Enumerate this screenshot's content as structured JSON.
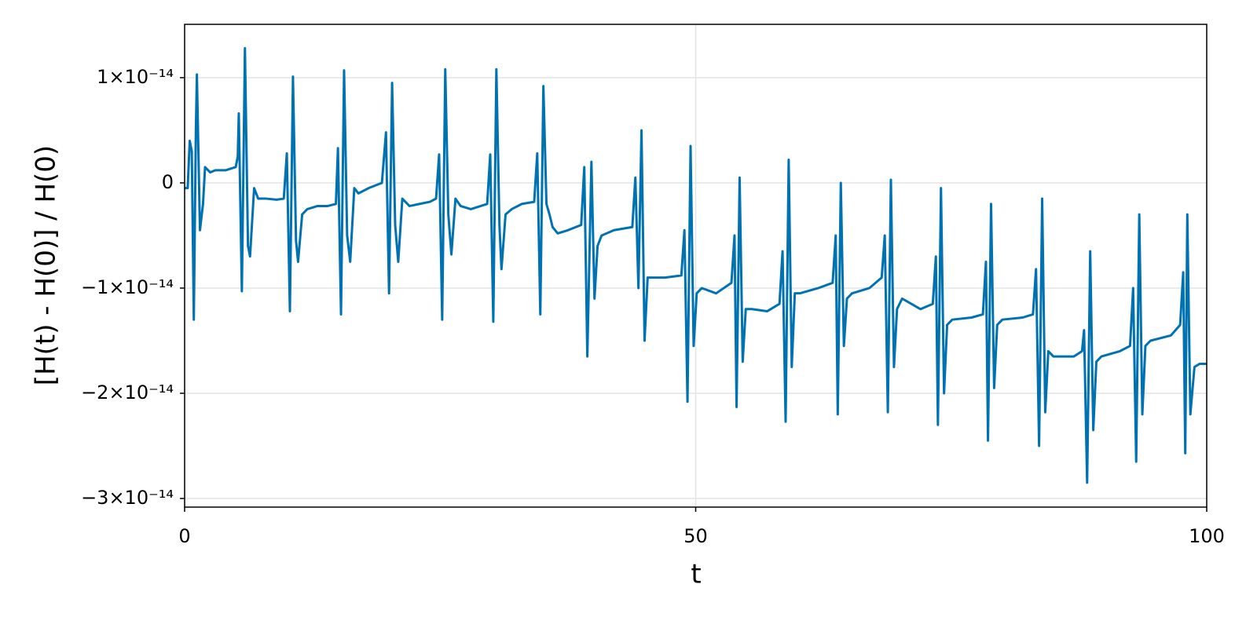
{
  "chart_data": {
    "type": "line",
    "x_label": "t",
    "y_label": "[H(t) - H(0)] / H(0)",
    "color": "#0072b2",
    "grid": true,
    "xlim": [
      0,
      100
    ],
    "xticks": [
      0,
      50,
      100
    ],
    "ylim": [
      -3.082e-14,
      1.507e-14
    ],
    "yticks": [
      {
        "value": -3e-14,
        "label": "−3×10⁻¹⁴"
      },
      {
        "value": -2e-14,
        "label": "−2×10⁻¹⁴"
      },
      {
        "value": -1e-14,
        "label": "−1×10⁻¹⁴"
      },
      0,
      {
        "value": 1e-14,
        "label": "1×10⁻¹⁴"
      }
    ],
    "x": [
      0,
      0.3,
      0.5,
      0.7,
      0.9,
      1.1,
      1.2,
      1.5,
      1.8,
      2.0,
      2.5,
      3,
      4,
      5,
      5.2,
      5.3,
      5.6,
      5.9,
      6.2,
      6.4,
      6.8,
      7.2,
      8,
      9,
      9.7,
      10.0,
      10.3,
      10.6,
      10.9,
      11.1,
      11.5,
      12,
      13,
      14,
      14.8,
      15.0,
      15.3,
      15.6,
      15.9,
      16.2,
      16.6,
      17,
      18,
      19.3,
      19.7,
      20.0,
      20.3,
      20.6,
      20.9,
      21.3,
      22,
      23,
      24,
      24.6,
      24.9,
      25.2,
      25.5,
      25.8,
      26.1,
      26.5,
      27,
      28,
      29.6,
      29.9,
      30.2,
      30.5,
      30.8,
      31.0,
      31.4,
      32,
      33,
      34.2,
      34.5,
      34.8,
      35.1,
      35.4,
      35.7,
      36.0,
      36.5,
      37.5,
      38.8,
      39.1,
      39.4,
      39.8,
      40.1,
      40.4,
      40.8,
      42,
      43.8,
      44.1,
      44.4,
      44.7,
      45.0,
      45.3,
      45.8,
      47,
      48.6,
      48.9,
      49.2,
      49.5,
      49.8,
      50.1,
      50.6,
      52,
      53.5,
      53.8,
      54.0,
      54.3,
      54.6,
      54.9,
      55.5,
      57,
      58.2,
      58.5,
      58.8,
      59.1,
      59.4,
      59.7,
      60.2,
      62,
      63.4,
      63.7,
      63.9,
      64.2,
      64.5,
      64.8,
      65.3,
      67,
      68.2,
      68.5,
      68.8,
      69.1,
      69.4,
      69.7,
      70.2,
      72,
      73.2,
      73.5,
      73.7,
      74.0,
      74.3,
      74.6,
      75.1,
      77,
      78.1,
      78.4,
      78.6,
      78.9,
      79.2,
      79.5,
      80,
      82,
      83.0,
      83.3,
      83.6,
      83.9,
      84.2,
      84.5,
      85,
      87,
      87.8,
      88.0,
      88.3,
      88.6,
      88.9,
      89.2,
      89.7,
      91.5,
      92.5,
      92.8,
      93.1,
      93.4,
      93.7,
      94.0,
      94.5,
      96.5,
      97.4,
      97.7,
      97.9,
      98.1,
      98.4,
      98.8,
      99.3,
      100
    ],
    "values": [
      -5e-16,
      -5e-16,
      4e-15,
      3e-15,
      -1.3e-14,
      5e-15,
      1.03e-14,
      -4.5e-15,
      -2e-15,
      1.5e-15,
      1e-15,
      1.2e-15,
      1.2e-15,
      1.5e-15,
      2.5e-15,
      6.6e-15,
      -1.03e-14,
      1.28e-14,
      -6e-15,
      -7e-15,
      -5e-16,
      -1.5e-15,
      -1.5e-15,
      -1.6e-15,
      -1.5e-15,
      2.8e-15,
      -1.22e-14,
      1.01e-14,
      -5.5e-15,
      -7.5e-15,
      -3e-15,
      -2.5e-15,
      -2.2e-15,
      -2.2e-15,
      -2e-15,
      3.3e-15,
      -1.25e-14,
      1.07e-14,
      -5e-15,
      -7.5e-15,
      -5e-16,
      -1e-15,
      -5e-16,
      0,
      4.8e-15,
      -1.05e-14,
      9.5e-15,
      -4e-15,
      -7.5e-15,
      -1.5e-15,
      -2.2e-15,
      -2e-15,
      -1.8e-15,
      -1.5e-15,
      2.7e-15,
      -1.3e-14,
      1.08e-14,
      -3e-15,
      -6.8e-15,
      -1.5e-15,
      -2.2e-15,
      -2.5e-15,
      -2e-15,
      2.7e-15,
      -1.32e-14,
      1.08e-14,
      -4e-15,
      -8.2e-15,
      -3e-15,
      -2.5e-15,
      -2e-15,
      -1.8e-15,
      2.8e-15,
      -1.25e-14,
      9.2e-15,
      -2e-15,
      -3e-15,
      -4.2e-15,
      -4.8e-15,
      -4.5e-15,
      -4e-15,
      1.5e-15,
      -1.65e-14,
      2e-15,
      -1.1e-14,
      -6e-15,
      -5e-15,
      -4.5e-15,
      -4.2e-15,
      5e-16,
      -1e-14,
      5e-15,
      -1.5e-14,
      -9e-15,
      -9e-15,
      -9e-15,
      -8.8e-15,
      -4.5e-15,
      -2.08e-14,
      3.5e-15,
      -1.55e-14,
      -1.05e-14,
      -1e-14,
      -1.05e-14,
      -9.5e-15,
      -5e-15,
      -2.13e-14,
      5e-16,
      -1.7e-14,
      -1.2e-14,
      -1.2e-14,
      -1.22e-14,
      -1.15e-14,
      -6.5e-15,
      -2.27e-14,
      2.2e-15,
      -1.75e-14,
      -1.05e-14,
      -1.05e-14,
      -1e-14,
      -9.5e-15,
      -5e-15,
      -2.2e-14,
      0,
      -1.55e-14,
      -1.1e-14,
      -1.05e-14,
      -1e-14,
      -9e-15,
      -5e-15,
      -2.18e-14,
      3e-16,
      -1.75e-14,
      -1.2e-14,
      -1.1e-14,
      -1.2e-14,
      -1.15e-14,
      -7e-15,
      -2.3e-14,
      -5e-16,
      -2e-14,
      -1.35e-14,
      -1.3e-14,
      -1.28e-14,
      -1.25e-14,
      -7.5e-15,
      -2.45e-14,
      -2e-15,
      -1.95e-14,
      -1.35e-14,
      -1.3e-14,
      -1.28e-14,
      -1.25e-14,
      -8.2e-15,
      -2.5e-14,
      -1.5e-15,
      -2.18e-14,
      -1.6e-14,
      -1.65e-14,
      -1.65e-14,
      -1.6e-14,
      -1.4e-14,
      -2.85e-14,
      -6.5e-15,
      -2.35e-14,
      -1.7e-14,
      -1.65e-14,
      -1.6e-14,
      -1.55e-14,
      -1e-14,
      -2.65e-14,
      -3e-15,
      -2.2e-14,
      -1.55e-14,
      -1.5e-14,
      -1.45e-14,
      -1.35e-14,
      -8.5e-15,
      -2.57e-14,
      -3e-15,
      -2.2e-14,
      -1.75e-14,
      -1.72e-14,
      -1.72e-14
    ]
  }
}
